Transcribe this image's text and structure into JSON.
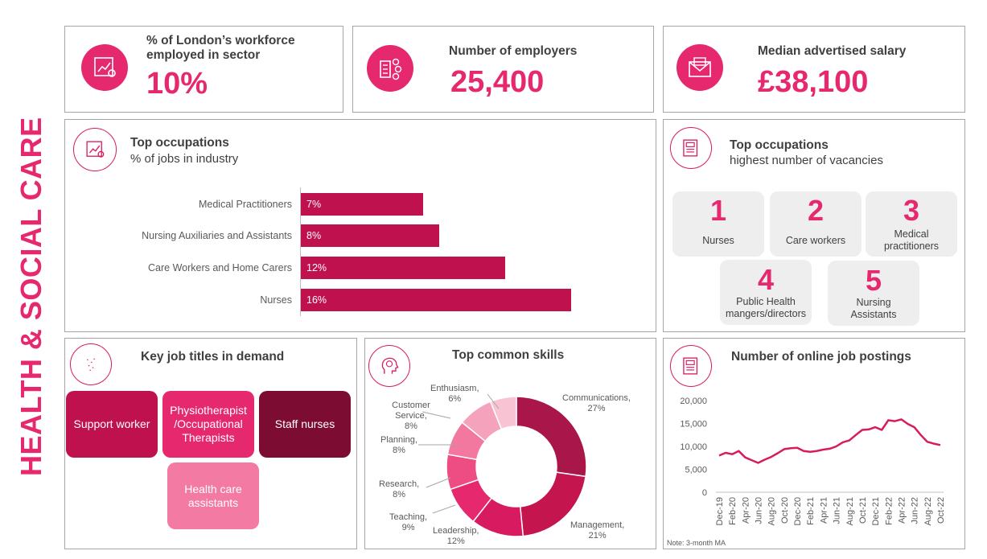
{
  "page_title": "HEALTH & SOCIAL CARE",
  "kpis": [
    {
      "title": "% of London’s workforce employed in sector",
      "value": "10%",
      "icon": "presentation-chart-icon"
    },
    {
      "title": "Number of employers",
      "value": "25,400",
      "icon": "building-people-icon"
    },
    {
      "title": "Median advertised salary",
      "value": "£38,100",
      "icon": "envelope-money-icon"
    }
  ],
  "top_occ": {
    "title": "Top occupations",
    "subtitle": "% of jobs in industry",
    "icon": "presentation-chart-icon"
  },
  "top_vac": {
    "title": "Top occupations",
    "subtitle": "highest number of vacancies",
    "icon": "newspaper-icon",
    "items": [
      {
        "rank": "1",
        "label": "Nurses"
      },
      {
        "rank": "2",
        "label": "Care workers"
      },
      {
        "rank": "3",
        "label": "Medical practitioners"
      },
      {
        "rank": "4",
        "label": "Public Health mangers/directors"
      },
      {
        "rank": "5",
        "label": "Nursing Assistants"
      }
    ]
  },
  "job_titles": {
    "title": "Key job titles in demand",
    "icon": "sparkle-icon",
    "items": [
      "Support worker",
      "Physiotherapist /Occupational Therapists",
      "Staff nurses",
      "Health care assistants"
    ]
  },
  "skills": {
    "title": "Top common skills",
    "icon": "brain-head-icon",
    "labels": [
      {
        "name": "Communications,",
        "pct": "27%"
      },
      {
        "name": "Management,",
        "pct": "21%"
      },
      {
        "name": "Leadership,",
        "pct": "12%"
      },
      {
        "name": "Teaching,",
        "pct": "9%"
      },
      {
        "name": "Research,",
        "pct": "8%"
      },
      {
        "name": "Planning,",
        "pct": "8%"
      },
      {
        "name": "Customer Service,",
        "pct": "8%"
      },
      {
        "name": "Enthusiasm,",
        "pct": "6%"
      }
    ]
  },
  "postings": {
    "title": "Number of online job postings",
    "icon": "newspaper-icon",
    "note": "Note: 3-month MA"
  },
  "chart_data": [
    {
      "type": "bar",
      "orientation": "horizontal",
      "title": "Top occupations",
      "subtitle": "% of jobs in industry",
      "categories": [
        "Medical Practitioners",
        "Nursing Auxiliaries and Assistants",
        "Care Workers and Home Carers",
        "Nurses"
      ],
      "values": [
        7,
        8,
        12,
        16
      ],
      "data_labels": [
        "7%",
        "8%",
        "12%",
        "16%"
      ],
      "colors": [
        "#c0114f"
      ]
    },
    {
      "type": "pie",
      "donut": true,
      "title": "Top common skills",
      "categories": [
        "Communications",
        "Management",
        "Leadership",
        "Teaching",
        "Research",
        "Planning",
        "Customer Service",
        "Enthusiasm"
      ],
      "values": [
        27,
        21,
        12,
        9,
        8,
        8,
        8,
        6
      ],
      "colors": [
        "#a8164a",
        "#c4154f",
        "#d81b60",
        "#e6286e",
        "#ee4d84",
        "#f2789f",
        "#f5a3bd",
        "#f8c4d4"
      ]
    },
    {
      "type": "line",
      "title": "Number of online job postings",
      "x": [
        "Dec-19",
        "Jan-20",
        "Feb-20",
        "Mar-20",
        "Apr-20",
        "May-20",
        "Jun-20",
        "Jul-20",
        "Aug-20",
        "Sep-20",
        "Oct-20",
        "Nov-20",
        "Dec-20",
        "Jan-21",
        "Feb-21",
        "Mar-21",
        "Apr-21",
        "May-21",
        "Jun-21",
        "Jul-21",
        "Aug-21",
        "Sep-21",
        "Oct-21",
        "Nov-21",
        "Dec-21",
        "Jan-22",
        "Feb-22",
        "Mar-22",
        "Apr-22",
        "May-22",
        "Jun-22",
        "Jul-22",
        "Aug-22",
        "Sep-22",
        "Oct-22"
      ],
      "x_ticks": [
        "Dec-19",
        "Feb-20",
        "Apr-20",
        "Jun-20",
        "Aug-20",
        "Oct-20",
        "Dec-20",
        "Feb-21",
        "Apr-21",
        "Jun-21",
        "Aug-21",
        "Oct-21",
        "Dec-21",
        "Feb-22",
        "Apr-22",
        "Jun-22",
        "Aug-22",
        "Oct-22"
      ],
      "values": [
        8000,
        8600,
        8300,
        9000,
        7600,
        7000,
        6400,
        7100,
        7700,
        8500,
        9400,
        9600,
        9700,
        9000,
        8800,
        9000,
        9300,
        9500,
        10000,
        10900,
        11300,
        12500,
        13600,
        13700,
        14200,
        13600,
        15700,
        15500,
        15900,
        14900,
        14200,
        12500,
        11000,
        10600,
        10300
      ],
      "ylim": [
        0,
        20000
      ],
      "y_ticks": [
        "0",
        "5,000",
        "10,000",
        "15,000",
        "20,000"
      ],
      "y_tick_values": [
        0,
        5000,
        10000,
        15000,
        20000
      ],
      "colors": [
        "#d81b60"
      ]
    }
  ]
}
